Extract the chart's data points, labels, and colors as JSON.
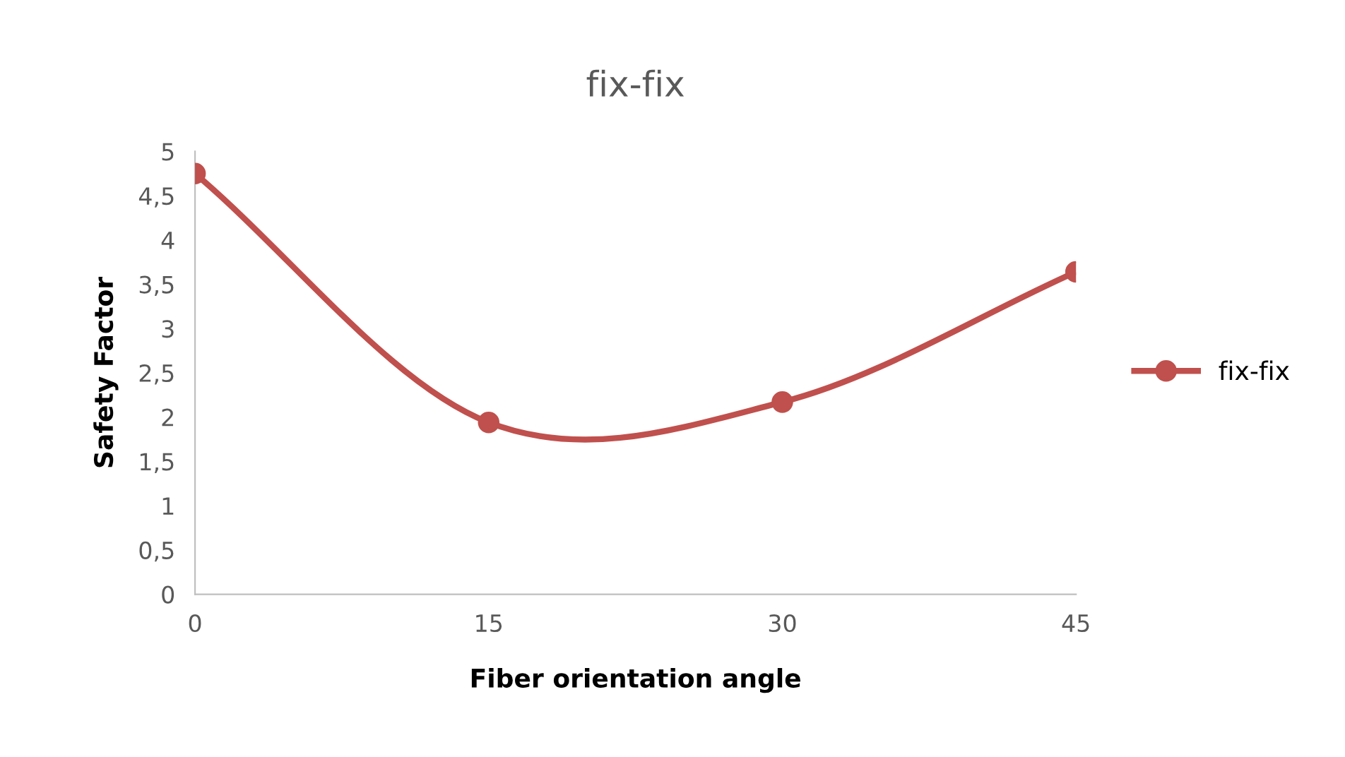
{
  "chart_data": {
    "type": "line",
    "title": "fix-fix",
    "xlabel": "Fiber orientation angle",
    "ylabel": "Safety Factor",
    "x": [
      0,
      15,
      30,
      45
    ],
    "series": [
      {
        "name": "fix-fix",
        "color": "#c0504d",
        "values": [
          4.75,
          1.94,
          2.17,
          3.64
        ]
      }
    ],
    "xlim": [
      0,
      45
    ],
    "xticks": [
      0,
      15,
      30,
      45
    ],
    "ylim": [
      0,
      5
    ],
    "yticks": [
      0,
      {
        "value": 0.5,
        "label": "0,5"
      },
      1,
      {
        "value": 1.5,
        "label": "1,5"
      },
      2,
      {
        "value": 2.5,
        "label": "2,5"
      },
      3,
      {
        "value": 3.5,
        "label": "3,5"
      },
      4,
      {
        "value": 4.5,
        "label": "4,5"
      },
      5
    ],
    "grid": false,
    "legend": "right",
    "marker": "circle",
    "line_style": "solid"
  }
}
